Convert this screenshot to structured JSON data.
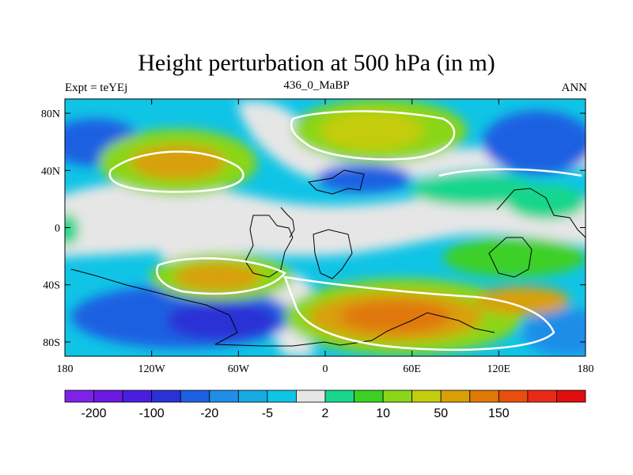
{
  "chart_data": {
    "type": "contour-map",
    "title": "Height perturbation at 500 hPa (in m)",
    "left_string": "Expt = teYEj",
    "center_string": "436_0_MaBP",
    "right_string": "ANN",
    "x_range": [
      -180,
      180
    ],
    "y_range": [
      -90,
      90
    ],
    "x_ticks": [
      {
        "value": -180,
        "label": "180"
      },
      {
        "value": -120,
        "label": "120W"
      },
      {
        "value": -60,
        "label": "60W"
      },
      {
        "value": 0,
        "label": "0"
      },
      {
        "value": 60,
        "label": "60E"
      },
      {
        "value": 120,
        "label": "120E"
      },
      {
        "value": 180,
        "label": "180"
      }
    ],
    "y_ticks": [
      {
        "value": 80,
        "label": "80N"
      },
      {
        "value": 40,
        "label": "40N"
      },
      {
        "value": 0,
        "label": "0"
      },
      {
        "value": -40,
        "label": "40S"
      },
      {
        "value": -80,
        "label": "80S"
      }
    ],
    "colorbar": {
      "colors": [
        "#7e22e8",
        "#6a1ae0",
        "#4a1ee0",
        "#2a32d6",
        "#1e60e2",
        "#1f8ee8",
        "#18aae2",
        "#10c4e6",
        "#e6e6e6",
        "#19d68c",
        "#3cd025",
        "#8ad618",
        "#c4cc10",
        "#d8a008",
        "#e07808",
        "#e84e0e",
        "#ea2a18",
        "#e00e0e"
      ],
      "labels": [
        {
          "boundary": 1,
          "text": "-200"
        },
        {
          "boundary": 3,
          "text": "-100"
        },
        {
          "boundary": 5,
          "text": "-20"
        },
        {
          "boundary": 7,
          "text": "-5"
        },
        {
          "boundary": 9,
          "text": "2"
        },
        {
          "boundary": 11,
          "text": "10"
        },
        {
          "boundary": 13,
          "text": "50"
        },
        {
          "boundary": 15,
          "text": "150"
        }
      ]
    },
    "field_features": [
      {
        "name": "positive-anomaly-north-america-north",
        "level": 50,
        "lon": [
          -150,
          -80
        ],
        "lat": [
          30,
          60
        ]
      },
      {
        "name": "positive-anomaly-eurasia-north",
        "level": 50,
        "lon": [
          -10,
          90
        ],
        "lat": [
          55,
          85
        ]
      },
      {
        "name": "positive-anomaly-south-atlantic",
        "level": 50,
        "lon": [
          -140,
          -60
        ],
        "lat": [
          -45,
          -25
        ]
      },
      {
        "name": "positive-anomaly-southern-ocean",
        "level": 150,
        "lon": [
          -20,
          110
        ],
        "lat": [
          -80,
          -50
        ]
      },
      {
        "name": "negative-anomaly-north-pacific",
        "level": -20,
        "lon": [
          100,
          180
        ],
        "lat": [
          35,
          80
        ]
      },
      {
        "name": "negative-anomaly-antarctic-pacific",
        "level": -100,
        "lon": [
          -180,
          -60
        ],
        "lat": [
          -85,
          -55
        ]
      }
    ]
  }
}
